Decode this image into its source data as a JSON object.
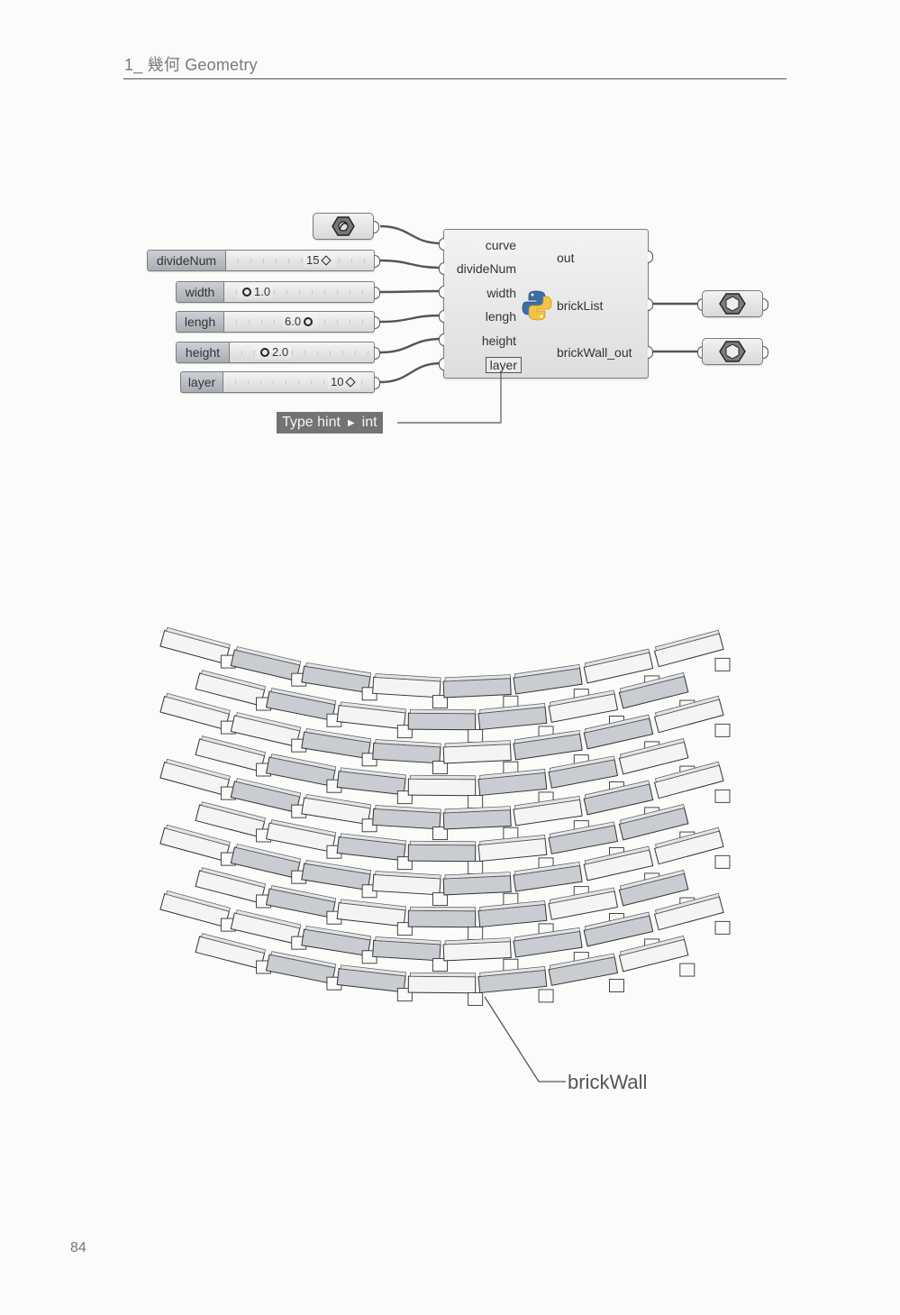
{
  "header": {
    "text": "1_ 幾何 Geometry"
  },
  "page_number": "84",
  "curve_param": {
    "icon": "hexagon-nut-curve-icon"
  },
  "sliders": [
    {
      "label": "divideNum",
      "value": "15",
      "knob": "diamond"
    },
    {
      "label": "width",
      "value": "1.0",
      "knob": "circle"
    },
    {
      "label": "lengh",
      "value": "6.0",
      "knob": "circle"
    },
    {
      "label": "height",
      "value": "2.0",
      "knob": "circle"
    },
    {
      "label": "layer",
      "value": "10",
      "knob": "diamond"
    }
  ],
  "component": {
    "icon": "python-logo-icon",
    "inputs": [
      "curve",
      "divideNum",
      "width",
      "lengh",
      "height",
      "layer"
    ],
    "outputs": [
      "out",
      "brickList",
      "brickWall_out"
    ]
  },
  "type_hint": {
    "label": "Type hint",
    "value": "int"
  },
  "output_params": [
    {
      "icon": "hexagon-geometry-icon"
    },
    {
      "icon": "hexagon-geometry-icon"
    }
  ],
  "callout": {
    "label": "brickWall"
  },
  "colors": {
    "wire": "#555555",
    "brick_light": "#f4f4f4",
    "brick_shaded": "#c9ccd0",
    "hint_bg": "#737373"
  }
}
